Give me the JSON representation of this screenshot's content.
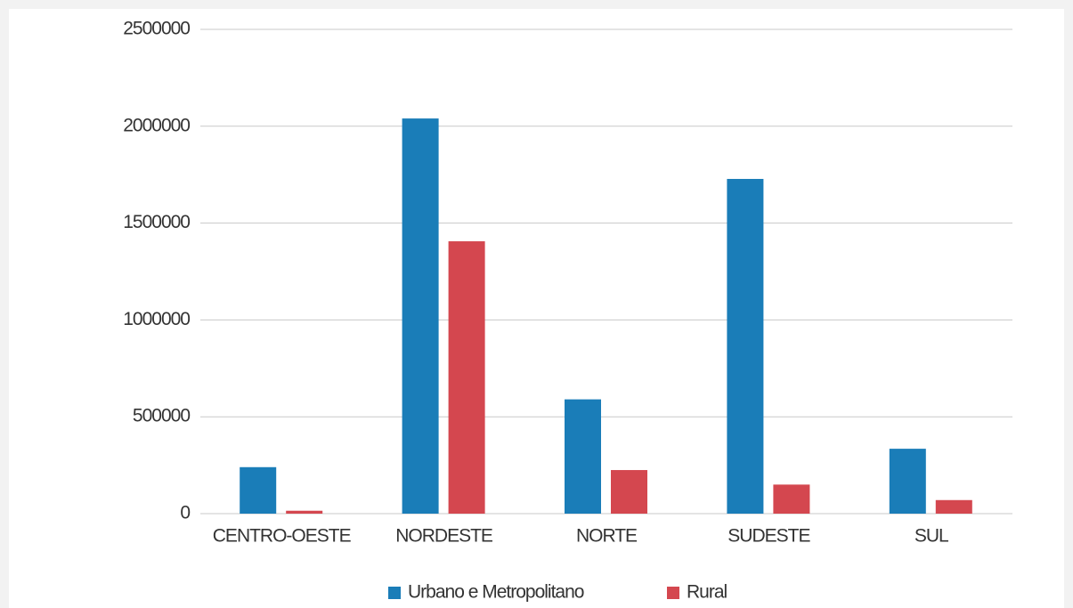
{
  "chart_data": {
    "type": "bar",
    "categories": [
      "CENTRO-OESTE",
      "NORDESTE",
      "NORTE",
      "SUDESTE",
      "SUL"
    ],
    "series": [
      {
        "name": "Urbano e Metropolitano",
        "color": "#1a7db8",
        "values": [
          240000,
          2040000,
          590000,
          1728000,
          335000
        ]
      },
      {
        "name": "Rural",
        "color": "#d4474f",
        "values": [
          15000,
          1406000,
          225000,
          150000,
          70000
        ]
      }
    ],
    "ylim": [
      0,
      2500000
    ],
    "yticks": [
      0,
      500000,
      1000000,
      1500000,
      2000000,
      2500000
    ],
    "grid": true,
    "legend": "bottom"
  }
}
